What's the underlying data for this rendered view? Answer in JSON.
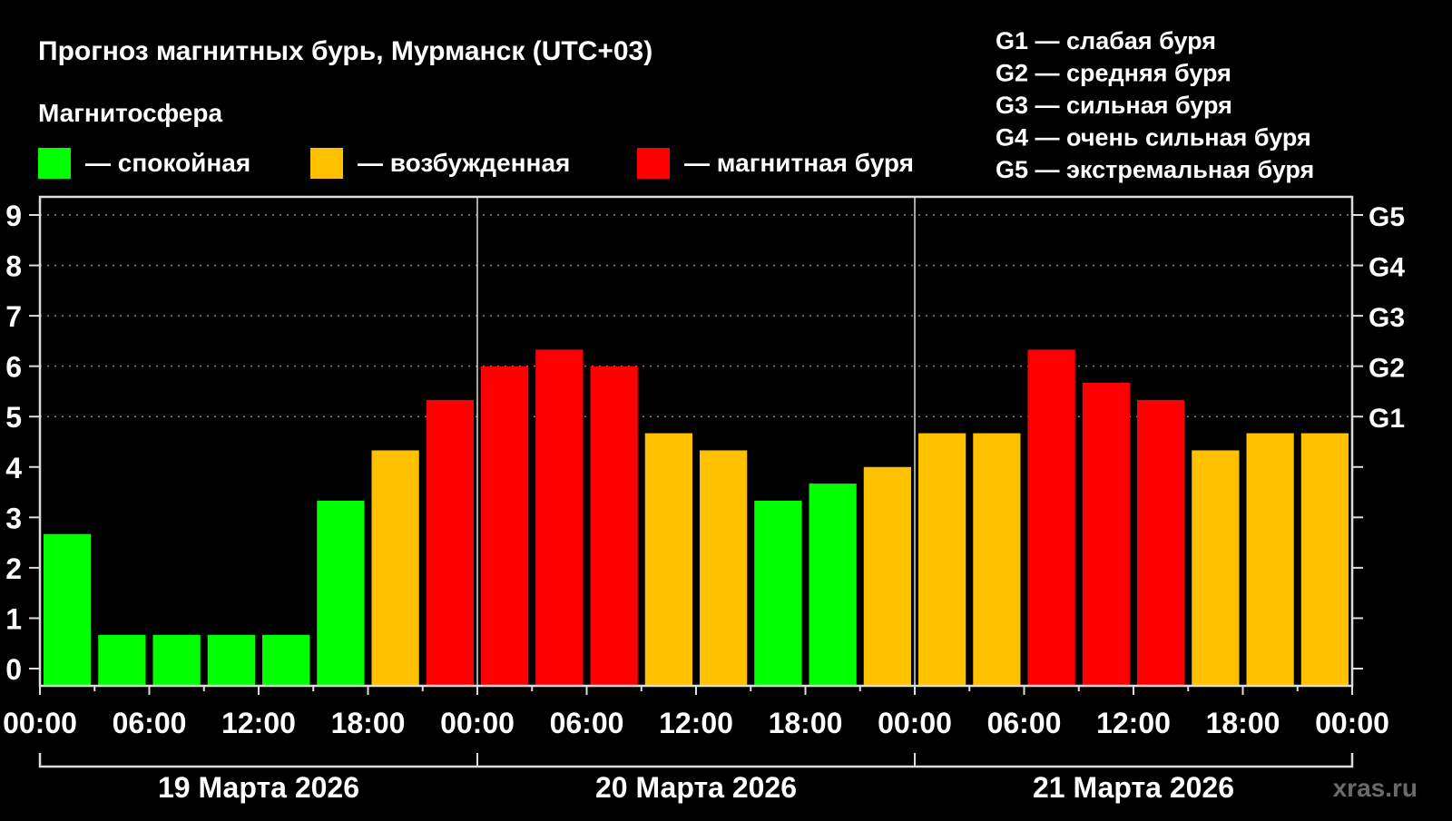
{
  "chart_data": {
    "type": "bar",
    "title": "Прогноз магнитных бурь, Мурманск (UTC+03)",
    "legend_title": "Магнитосфера",
    "legend": [
      {
        "key": "calm",
        "label": "— спокойная",
        "color": "#00ff00"
      },
      {
        "key": "excited",
        "label": "— возбужденная",
        "color": "#ffc000"
      },
      {
        "key": "storm",
        "label": "— магнитная буря",
        "color": "#ff0000"
      }
    ],
    "g_legend": [
      "G1 — слабая буря",
      "G2 — средняя буря",
      "G3 — сильная буря",
      "G4 — очень сильная буря",
      "G5 — экстремальная буря"
    ],
    "ylim": [
      0,
      9
    ],
    "yticks": [
      "0",
      "1",
      "2",
      "3",
      "4",
      "5",
      "6",
      "7",
      "8",
      "9"
    ],
    "right_ticks": [
      {
        "value": 5,
        "label": "G1"
      },
      {
        "value": 6,
        "label": "G2"
      },
      {
        "value": 7,
        "label": "G3"
      },
      {
        "value": 8,
        "label": "G4"
      },
      {
        "value": 9,
        "label": "G5"
      }
    ],
    "xtick_labels": [
      "00:00",
      "06:00",
      "12:00",
      "18:00",
      "00:00",
      "06:00",
      "12:00",
      "18:00",
      "00:00",
      "06:00",
      "12:00",
      "18:00",
      "00:00"
    ],
    "days": [
      "19 Марта 2026",
      "20 Марта 2026",
      "21 Марта 2026"
    ],
    "values": [
      2.67,
      0.67,
      0.67,
      0.67,
      0.67,
      3.33,
      4.33,
      5.33,
      6.0,
      6.33,
      6.0,
      4.67,
      4.33,
      3.33,
      3.67,
      4.0,
      4.67,
      4.67,
      6.33,
      5.67,
      5.33,
      4.33,
      4.67,
      4.67
    ],
    "levels": [
      "calm",
      "calm",
      "calm",
      "calm",
      "calm",
      "calm",
      "excited",
      "storm",
      "storm",
      "storm",
      "storm",
      "excited",
      "excited",
      "calm",
      "calm",
      "excited",
      "excited",
      "excited",
      "storm",
      "storm",
      "storm",
      "excited",
      "excited",
      "excited"
    ],
    "grid": true
  },
  "watermark": "xras.ru"
}
